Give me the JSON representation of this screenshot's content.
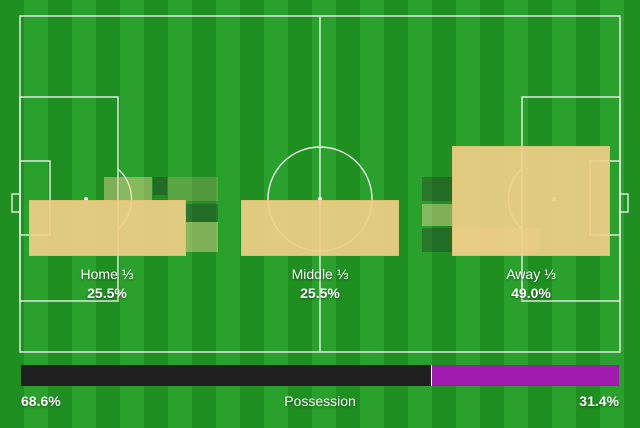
{
  "zones": [
    {
      "label": "Home ⅓",
      "value": "25.5%"
    },
    {
      "label": "Middle ⅓",
      "value": "25.5%"
    },
    {
      "label": "Away ⅓",
      "value": "49.0%"
    }
  ],
  "possession": {
    "label": "Possession",
    "home_value": "68.6%",
    "away_value": "31.4%",
    "home_fraction": 0.686,
    "away_fraction": 0.314,
    "home_color": "#1f1f1f",
    "away_color": "#a11bb1"
  },
  "colors": {
    "pitch_dark": "#1f8f22",
    "pitch_light": "#2aa12c",
    "zone_fill": "#f1cf88"
  }
}
